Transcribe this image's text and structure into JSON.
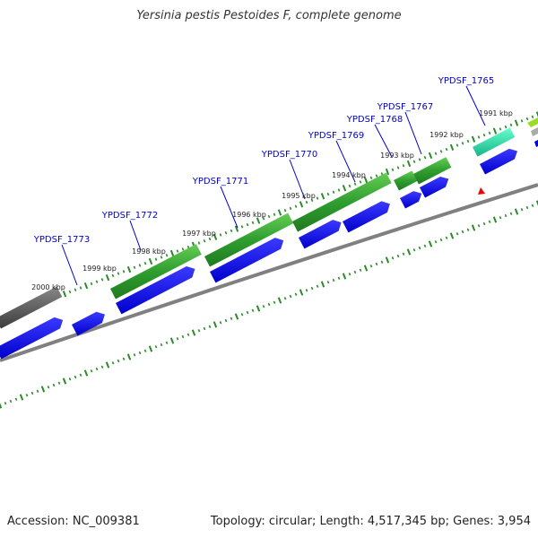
{
  "title": "Yersinia pestis Pestoides F, complete genome",
  "footer": {
    "accession": "Accession: NC_009381",
    "summary": "Topology: circular; Length: 4,517,345 bp; Genes: 3,954"
  },
  "kbp_ticks": [
    "1991 kbp",
    "1992 kbp",
    "1993 kbp",
    "1994 kbp",
    "1995 kbp",
    "1996 kbp",
    "1997 kbp",
    "1998 kbp",
    "1999 kbp",
    "2000 kbp"
  ],
  "genes": [
    "YPDSF_1765",
    "YPDSF_1767",
    "YPDSF_1768",
    "YPDSF_1769",
    "YPDSF_1770",
    "YPDSF_1771",
    "YPDSF_1772",
    "YPDSF_1773"
  ],
  "colors": {
    "gene_label": "#0000cc",
    "cds": "#0000ee",
    "track_green": "#33aa33",
    "track_teal": "#22ddaa",
    "track_gray": "#555555",
    "backbone": "#808080",
    "tick": "#2a8a2a",
    "marker": "#ee0000"
  }
}
